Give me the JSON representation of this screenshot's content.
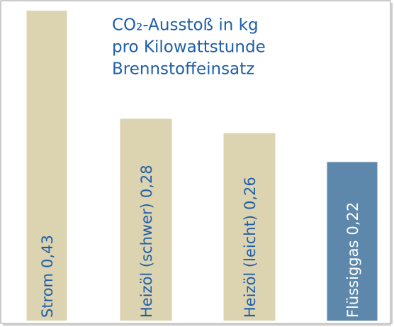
{
  "chart_data": {
    "type": "bar",
    "title": [
      "CO₂-Ausstoß in kg",
      "pro Kilowattstunde",
      "Brennstoffeinsatz"
    ],
    "categories": [
      "Strom",
      "Heizöl (schwer)",
      "Heizöl (leicht)",
      "Flüssiggas"
    ],
    "values": [
      0.43,
      0.28,
      0.26,
      0.22
    ],
    "value_labels": [
      "0,43",
      "0,28",
      "0,26",
      "0,22"
    ],
    "colors": [
      "#dcd3b0",
      "#dcd3b0",
      "#dcd3b0",
      "#5d87ab"
    ],
    "label_colors": [
      "#1f5fa8",
      "#1f5fa8",
      "#1f5fa8",
      "#ffffff"
    ],
    "title_color": "#1f5fa8"
  }
}
